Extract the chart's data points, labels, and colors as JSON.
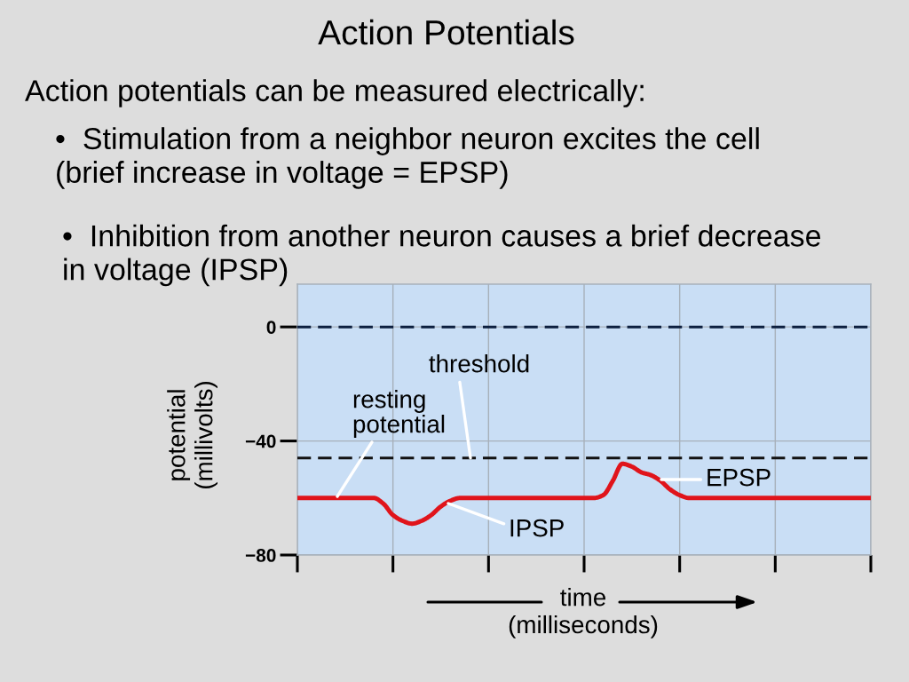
{
  "chart_data": {
    "type": "line",
    "title": "Action Potentials",
    "subtitle": "Action potentials can be measured electrically:",
    "xlabel": "time\n(milliseconds)",
    "ylabel": "potential\n(millivolts)",
    "categories": [
      null,
      null,
      null,
      null,
      null,
      null,
      null,
      null,
      null,
      null,
      null,
      null,
      null,
      null,
      null,
      null,
      null,
      null,
      null,
      null,
      null,
      null,
      null,
      null,
      null,
      null,
      null,
      null,
      null,
      null,
      null,
      null,
      null,
      null,
      null,
      null,
      null,
      null,
      null,
      null,
      null,
      null,
      null,
      null,
      null,
      null,
      null,
      null,
      null,
      null,
      null,
      null,
      null,
      null,
      null,
      null,
      null,
      null,
      null,
      null,
      null
    ],
    "series": [
      {
        "color": "#e0141b",
        "values": [
          -60,
          -60,
          -60,
          -60,
          -60,
          -60,
          -60,
          -60,
          -60,
          -62,
          -66,
          -68,
          -69,
          -68,
          -66,
          -63,
          -61,
          -60,
          -60,
          -60,
          -60,
          -60,
          -60,
          -60,
          -60,
          -60,
          -60,
          -60,
          -60,
          -60,
          -60,
          -60,
          -59,
          -54,
          -48,
          -49,
          -51,
          -52,
          -54,
          -57,
          -59,
          -60,
          -60,
          -60,
          -60,
          -60,
          -60,
          -60,
          -60,
          -60,
          -60,
          -60,
          -60,
          -60,
          -60,
          -60,
          -60,
          -60,
          -60,
          -60,
          -60
        ]
      }
    ],
    "ylim": [
      -80,
      15
    ],
    "yticks": [
      0,
      {
        "value": -40,
        "label": "−40"
      },
      {
        "value": -80,
        "label": "−80"
      }
    ],
    "grid": true,
    "line_style": "solid",
    "ref_lines": [
      {
        "axis": "y",
        "value": 0,
        "color": "#0c1f3f",
        "line_style": "dashed"
      },
      {
        "axis": "y",
        "value": -46,
        "label": "threshold",
        "color": "#111111",
        "line_style": "dashed"
      }
    ],
    "annotations": [
      "•  Stimulation from a neighbor neuron excites the cell\n(brief increase in voltage = EPSP)",
      "•  Inhibition from another neuron causes a brief decrease\nin voltage (IPSP)",
      "resting\npotential",
      "IPSP",
      "EPSP"
    ]
  }
}
